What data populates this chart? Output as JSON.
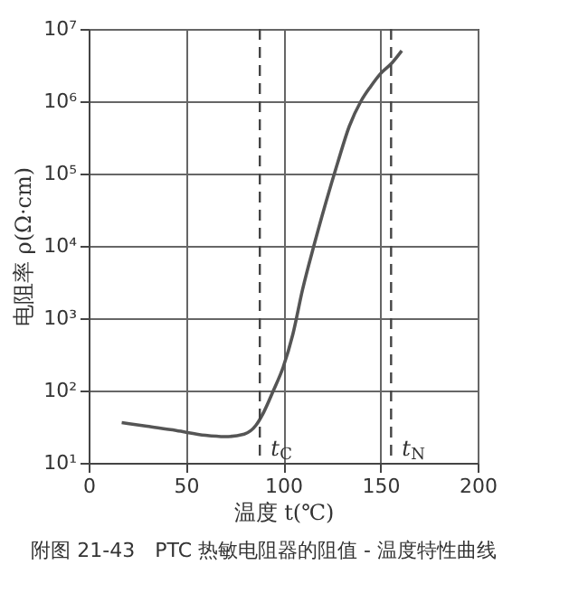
{
  "chart_data": {
    "type": "line",
    "title": "附图 21-43　PTC 热敏电阻器的阻值 - 温度特性曲线",
    "xlabel": "温度 t(℃)",
    "ylabel": "电阻率 ρ(Ω·cm)",
    "x": [
      17,
      30,
      45,
      60,
      70,
      80,
      86,
      90,
      95,
      100,
      105,
      110,
      116,
      122,
      128,
      134,
      140,
      145,
      150,
      156,
      161
    ],
    "series": [
      {
        "color": "#555555",
        "values": [
          36,
          32,
          28,
          24,
          23,
          25,
          33,
          50,
          100,
          210,
          600,
          2500,
          10500,
          40000,
          140000,
          450000,
          1000000,
          1600000,
          2400000,
          3400000,
          5000000
        ]
      }
    ],
    "xlim": [
      0,
      200
    ],
    "xticks": [
      0,
      50,
      100,
      150,
      200
    ],
    "ylim": [
      10,
      10000000
    ],
    "yticks": [
      {
        "value": 10,
        "label": "10¹"
      },
      {
        "value": 100,
        "label": "10²"
      },
      {
        "value": 1000,
        "label": "10³"
      },
      {
        "value": 10000,
        "label": "10⁴"
      },
      {
        "value": 100000,
        "label": "10⁵"
      },
      {
        "value": 1000000,
        "label": "10⁶"
      },
      {
        "value": 10000000,
        "label": "10⁷"
      }
    ],
    "log": "y",
    "grid": true,
    "line_style": "solid",
    "marker": "none",
    "ref_lines": [
      {
        "axis": "x",
        "value": 88,
        "label": "t$_{C}$",
        "line_style": "dashed"
      },
      {
        "axis": "x",
        "value": 155.5,
        "label": "t$_{N}$",
        "line_style": "dashed"
      }
    ]
  }
}
